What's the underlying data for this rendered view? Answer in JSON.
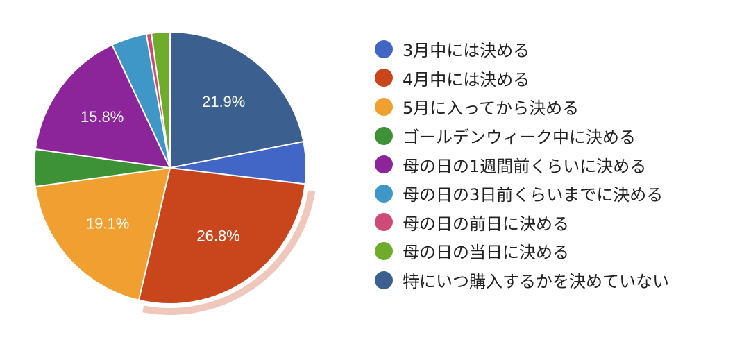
{
  "chart_data": {
    "type": "pie",
    "title": "",
    "start_angle_deg": 0,
    "highlighted_slice": "4月中には決める",
    "slices": [
      {
        "label": "特にいつ購入するかを決めていない",
        "value": 21.9,
        "color": "#3b5f8f",
        "value_label": "21.9%"
      },
      {
        "label": "3月中には決める",
        "value": 5.0,
        "color": "#4266c6",
        "value_label": ""
      },
      {
        "label": "4月中には決める",
        "value": 26.8,
        "color": "#c9461d",
        "value_label": "26.8%"
      },
      {
        "label": "5月に入ってから決める",
        "value": 19.1,
        "color": "#f0a030",
        "value_label": "19.1%"
      },
      {
        "label": "ゴールデンウィーク中に決める",
        "value": 4.4,
        "color": "#3d9235",
        "value_label": ""
      },
      {
        "label": "母の日の1週間前くらいに決める",
        "value": 15.8,
        "color": "#8c249a",
        "value_label": "15.8%"
      },
      {
        "label": "母の日の3日前くらいまでに決める",
        "value": 4.2,
        "color": "#3f97c8",
        "value_label": ""
      },
      {
        "label": "母の日の前日に決める",
        "value": 0.6,
        "color": "#cf4a77",
        "value_label": ""
      },
      {
        "label": "母の日の当日に決める",
        "value": 2.2,
        "color": "#6ead2c",
        "value_label": ""
      }
    ],
    "legend": {
      "position": "right",
      "entries": [
        {
          "label": "3月中には決める",
          "color": "#4266c6"
        },
        {
          "label": "4月中には決める",
          "color": "#c9461d"
        },
        {
          "label": "5月に入ってから決める",
          "color": "#f0a030"
        },
        {
          "label": "ゴールデンウィーク中に決める",
          "color": "#3d9235"
        },
        {
          "label": "母の日の1週間前くらいに決める",
          "color": "#8c249a"
        },
        {
          "label": "母の日の3日前くらいまでに決める",
          "color": "#3f97c8"
        },
        {
          "label": "母の日の前日に決める",
          "color": "#cf4a77"
        },
        {
          "label": "母の日の当日に決める",
          "color": "#6ead2c"
        },
        {
          "label": "特にいつ購入するかを決めていない",
          "color": "#3b5f8f"
        }
      ]
    }
  }
}
